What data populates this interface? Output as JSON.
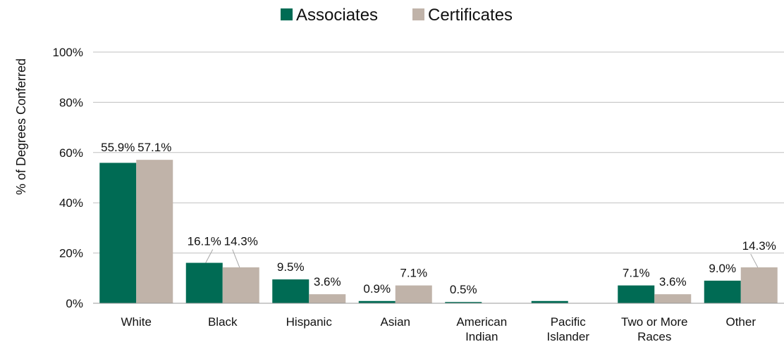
{
  "chart_data": {
    "type": "bar",
    "categories": [
      "White",
      "Black",
      "Hispanic",
      "Asian",
      "American\nIndian",
      "Pacific\nIslander",
      "Two or More\nRaces",
      "Other"
    ],
    "series": [
      {
        "name": "Associates",
        "color": "#006B54",
        "values": [
          55.9,
          16.1,
          9.5,
          0.9,
          0.5,
          0.9,
          7.1,
          9.0
        ],
        "labels": [
          "55.9%",
          "16.1%",
          "9.5%",
          "0.9%",
          "0.5%",
          "",
          "7.1%",
          "9.0%"
        ]
      },
      {
        "name": "Certificates",
        "color": "#C0B3A9",
        "values": [
          57.1,
          14.3,
          3.6,
          7.1,
          0,
          0,
          3.6,
          14.3
        ],
        "labels": [
          "57.1%",
          "14.3%",
          "3.6%",
          "7.1%",
          "",
          "",
          "3.6%",
          "14.3%"
        ]
      }
    ],
    "ylabel": "% of Degrees Conferred",
    "ylim": [
      0,
      100
    ],
    "yticks": [
      0,
      20,
      40,
      60,
      80,
      100
    ],
    "ytick_labels": [
      "0%",
      "20%",
      "40%",
      "60%",
      "80%",
      "100%"
    ],
    "grid": true,
    "legend": "top-center"
  }
}
